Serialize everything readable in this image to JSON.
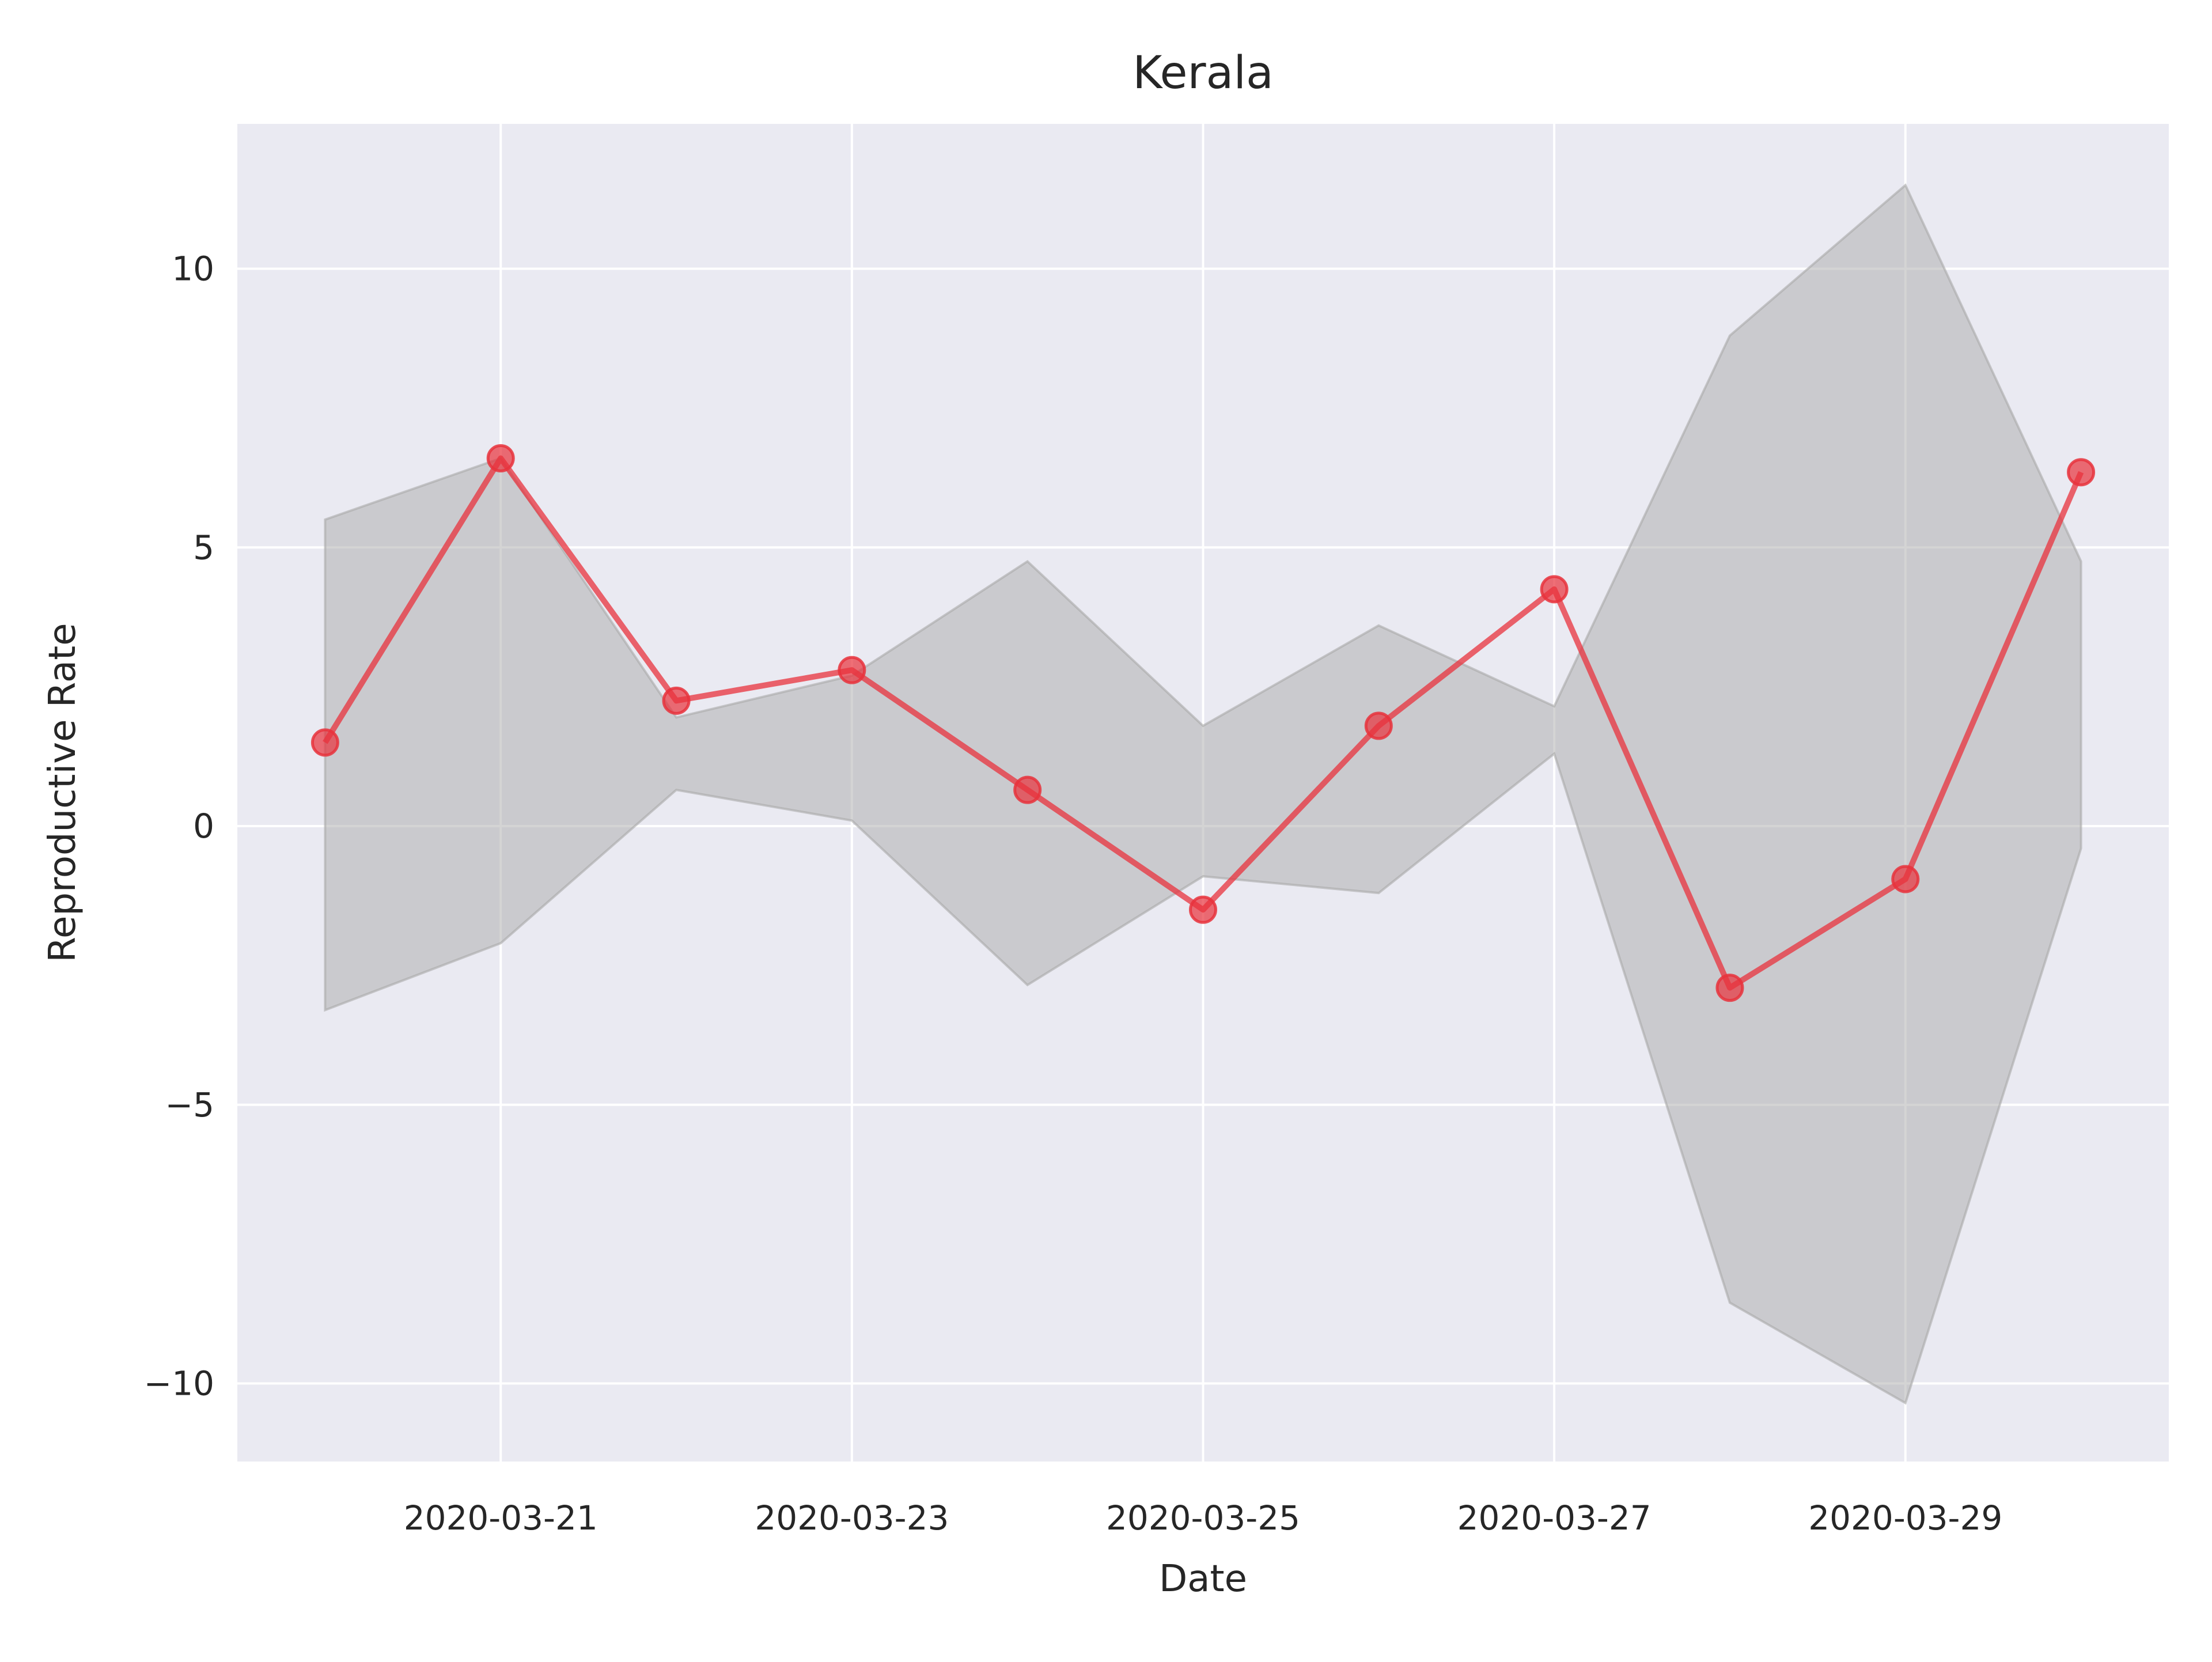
{
  "chart_data": {
    "type": "line",
    "title": "Kerala",
    "xlabel": "Date",
    "ylabel": "Reproductive Rate",
    "x": [
      "2020-03-20",
      "2020-03-21",
      "2020-03-22",
      "2020-03-23",
      "2020-03-24",
      "2020-03-25",
      "2020-03-26",
      "2020-03-27",
      "2020-03-28",
      "2020-03-29",
      "2020-03-30"
    ],
    "x_ticks": [
      "2020-03-21",
      "2020-03-23",
      "2020-03-25",
      "2020-03-27",
      "2020-03-29"
    ],
    "xlim": [
      "2020-03-19.5",
      "2020-03-30.5"
    ],
    "y_ticks": [
      -10,
      -5,
      0,
      5,
      10
    ],
    "y_tick_labels": [
      "−10",
      "−5",
      "0",
      "5",
      "10"
    ],
    "ylim": [
      -11.4,
      12.6
    ],
    "grid": true,
    "series": [
      {
        "values": [
          1.5,
          6.6,
          2.25,
          2.8,
          0.65,
          -1.5,
          1.8,
          4.25,
          -2.9,
          -0.95,
          6.35
        ],
        "color": "#e8323c",
        "marker": "circle"
      }
    ],
    "band": {
      "upper": [
        5.5,
        6.6,
        1.95,
        2.7,
        4.75,
        1.8,
        3.6,
        2.15,
        8.8,
        11.5,
        4.75
      ],
      "lower": [
        -3.3,
        -2.1,
        0.65,
        0.1,
        -2.85,
        -0.9,
        -1.2,
        1.3,
        -8.55,
        -10.35,
        -0.4
      ],
      "color": "#a9a9a9"
    },
    "colors": {
      "background": "#eaeaf2",
      "grid": "#ffffff",
      "line": "#e8323c",
      "band": "#a9a9a9"
    }
  }
}
